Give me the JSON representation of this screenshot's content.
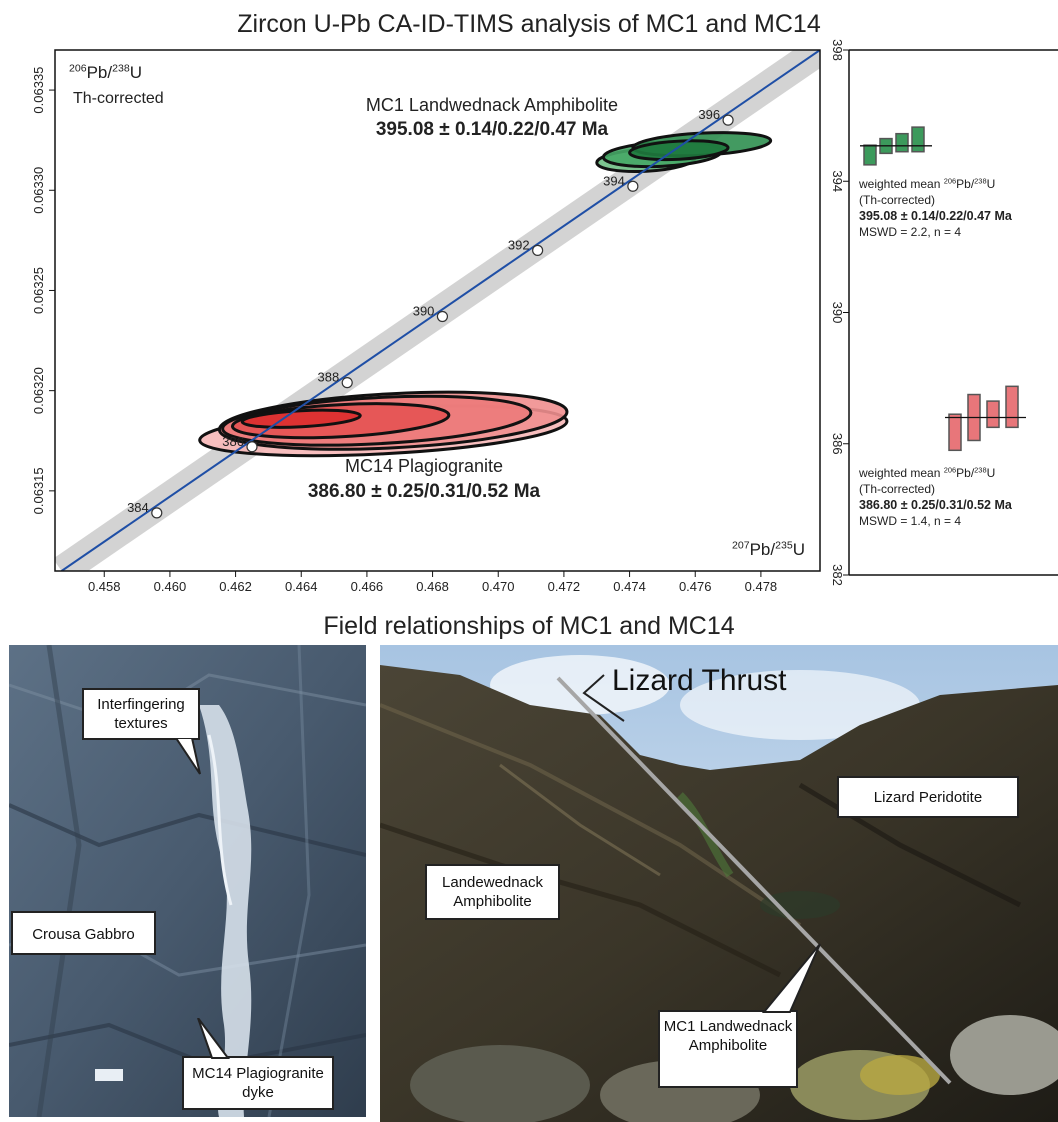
{
  "titles": {
    "upper": "Zircon U-Pb CA-ID-TIMS analysis of MC1 and MC14",
    "lower": "Field relationships of MC1 and MC14"
  },
  "chart_data": [
    {
      "type": "scatter",
      "subtype": "concordia",
      "ylabel_sup1": "206",
      "ylabel_base1": "Pb/",
      "ylabel_sup2": "238",
      "ylabel_base2": "U",
      "ylabel_note": "Th-corrected",
      "xlabel_sup1": "207",
      "xlabel_base1": "Pb/",
      "xlabel_sup2": "235",
      "xlabel_base2": "U",
      "xlim": [
        0.4565,
        0.4798
      ],
      "ylim": [
        0.06311,
        0.06337
      ],
      "x_ticks": [
        "0.458",
        "0.460",
        "0.462",
        "0.464",
        "0.466",
        "0.468",
        "0.470",
        "0.472",
        "0.474",
        "0.476",
        "0.478"
      ],
      "y_ticks": [
        "0.06315",
        "0.06320",
        "0.06325",
        "0.06330",
        "0.06335"
      ],
      "concordia_ages": [
        {
          "label": "384",
          "x": 0.4596,
          "y": 0.063139
        },
        {
          "label": "386",
          "x": 0.4625,
          "y": 0.063172
        },
        {
          "label": "388",
          "x": 0.4654,
          "y": 0.063204
        },
        {
          "label": "390",
          "x": 0.4683,
          "y": 0.063237
        },
        {
          "label": "392",
          "x": 0.4712,
          "y": 0.06327
        },
        {
          "label": "394",
          "x": 0.4741,
          "y": 0.063302
        },
        {
          "label": "396",
          "x": 0.477,
          "y": 0.063335
        }
      ],
      "concordia_line": [
        [
          0.4567,
          0.06311
        ],
        [
          0.4798,
          0.06337
        ]
      ],
      "series": [
        {
          "name": "MC1",
          "color": "#3c9a5c",
          "ellipses": [
            {
              "cx": 0.4745,
              "cy": 0.063315,
              "rx": 0.0015,
              "ry": 5.5e-06,
              "angle": -3
            },
            {
              "cx": 0.475,
              "cy": 0.063318,
              "rx": 0.0018,
              "ry": 6e-06,
              "angle": -3
            },
            {
              "cx": 0.4762,
              "cy": 0.063323,
              "rx": 0.0021,
              "ry": 5.5e-06,
              "angle": -3
            },
            {
              "cx": 0.4755,
              "cy": 0.06332,
              "rx": 0.0015,
              "ry": 4.5e-06,
              "angle": -3
            }
          ]
        },
        {
          "name": "MC14",
          "color": "#e34a4a",
          "ellipses": [
            {
              "cx": 0.4665,
              "cy": 0.06318,
              "rx": 0.0056,
              "ry": 1.15e-05,
              "angle": -3
            },
            {
              "cx": 0.4668,
              "cy": 0.063185,
              "rx": 0.0053,
              "ry": 1.35e-05,
              "angle": -3
            },
            {
              "cx": 0.4663,
              "cy": 0.063185,
              "rx": 0.0047,
              "ry": 1.15e-05,
              "angle": -3
            },
            {
              "cx": 0.4652,
              "cy": 0.063185,
              "rx": 0.0033,
              "ry": 8e-06,
              "angle": -3
            },
            {
              "cx": 0.464,
              "cy": 0.063186,
              "rx": 0.0018,
              "ry": 4e-06,
              "angle": -3
            }
          ]
        }
      ],
      "annotations": {
        "mc1_name": "MC1 Landwednack Amphibolite",
        "mc1_age": "395.08 ± 0.14/0.22/0.47 Ma",
        "mc14_name": "MC14 Plagiogranite",
        "mc14_age": "386.80 ± 0.25/0.31/0.52 Ma"
      }
    },
    {
      "type": "bar",
      "subtype": "weighted-mean",
      "ylim": [
        382,
        398
      ],
      "y_ticks": [
        "382",
        "386",
        "390",
        "394",
        "398"
      ],
      "series": [
        {
          "name": "MC1",
          "color": "#3c9a5c",
          "mean": 395.08,
          "bars": [
            [
              394.5,
              395.1
            ],
            [
              394.85,
              395.3
            ],
            [
              394.9,
              395.45
            ],
            [
              394.9,
              395.65
            ]
          ]
        },
        {
          "name": "MC14",
          "color": "#e8767a",
          "mean": 386.8,
          "bars": [
            [
              385.8,
              386.9
            ],
            [
              386.1,
              387.5
            ],
            [
              386.5,
              387.3
            ],
            [
              386.5,
              387.75
            ]
          ]
        }
      ],
      "labels": {
        "wm_prefix": "weighted mean ",
        "wm_sup1": "206",
        "wm_mid": "Pb/",
        "wm_sup2": "238",
        "wm_end": "U",
        "th": "(Th-corrected)",
        "mc1_age": "395.08 ± 0.14/0.22/0.47 Ma",
        "mc1_mswd": "MSWD = 2.2, n = 4",
        "mc14_age": "386.80 ± 0.25/0.31/0.52 Ma",
        "mc14_mswd": "MSWD = 1.4, n = 4"
      }
    }
  ],
  "field_photos": {
    "left_labels": {
      "interfingering": "Interfingering textures",
      "crousa": "Crousa Gabbro",
      "mc14": "MC14 Plagiogranite dyke"
    },
    "right_labels": {
      "thrust": "Lizard Thrust",
      "peridotite": "Lizard Peridotite",
      "landewednack": "Landewednack Amphibolite",
      "mc1": "MC1 Landwednack Amphibolite"
    }
  }
}
